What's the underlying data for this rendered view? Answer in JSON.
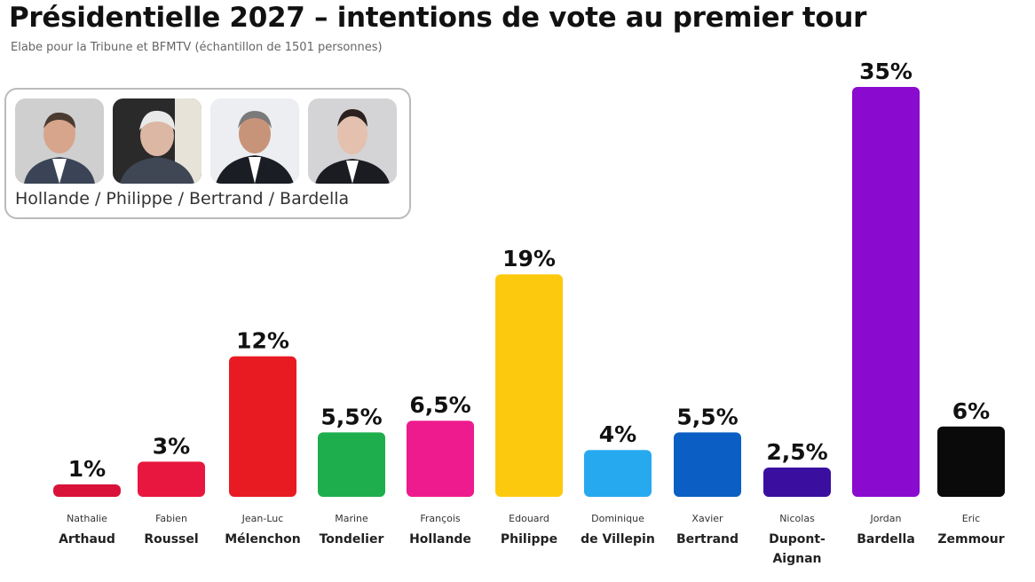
{
  "chart_data": {
    "type": "bar",
    "title": "Présidentielle 2027 – intentions de vote au premier tour",
    "subtitle": "Elabe pour la Tribune et  BFMTV (échantillon de 1501 personnes)",
    "hypothesis": "Hollande / Philippe / Bertrand / Bardella",
    "unit": "%",
    "categories": [
      {
        "first": "Nathalie",
        "last": "Arthaud"
      },
      {
        "first": "Fabien",
        "last": "Roussel"
      },
      {
        "first": "Jean-Luc",
        "last": "Mélenchon"
      },
      {
        "first": "Marine",
        "last": "Tondelier"
      },
      {
        "first": "François",
        "last": "Hollande"
      },
      {
        "first": "Edouard",
        "last": "Philippe"
      },
      {
        "first": "Dominique",
        "last": "de Villepin"
      },
      {
        "first": "Xavier",
        "last": "Bertrand"
      },
      {
        "first": "Nicolas",
        "last": "Dupont-Aignan"
      },
      {
        "first": "Jordan",
        "last": "Bardella"
      },
      {
        "first": "Eric",
        "last": "Zemmour"
      }
    ],
    "values": [
      1,
      3,
      12,
      5.5,
      6.5,
      19,
      4,
      5.5,
      2.5,
      35,
      6
    ],
    "labels": [
      "1%",
      "3%",
      "12%",
      "5,5%",
      "6,5%",
      "19%",
      "4%",
      "5,5%",
      "2,5%",
      "35%",
      "6%"
    ],
    "colors": [
      "#d9123a",
      "#e8173f",
      "#e81b23",
      "#1fae4e",
      "#ee1b8e",
      "#fdc90f",
      "#27a9f0",
      "#0b5fc4",
      "#3a0fa0",
      "#8a0ad0",
      "#0a0a0a"
    ],
    "grid": false,
    "ylim": [
      0,
      35
    ]
  }
}
